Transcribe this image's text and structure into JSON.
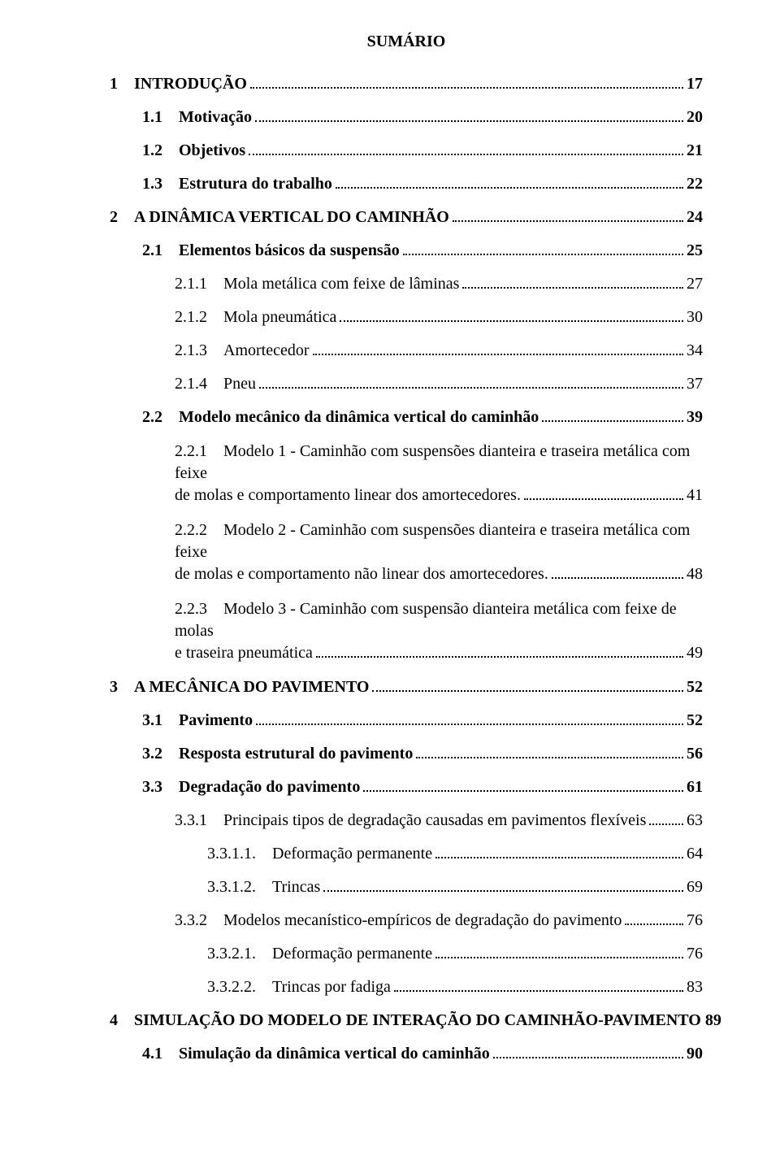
{
  "title": "SUMÁRIO",
  "sp": "    ",
  "entries": [
    {
      "id": "e0",
      "level": 0,
      "bold": true,
      "num": "1",
      "label": "INTRODUÇÃO",
      "page": "17"
    },
    {
      "id": "e1",
      "level": 1,
      "bold": true,
      "num": "1.1",
      "label": "Motivação",
      "page": "20"
    },
    {
      "id": "e2",
      "level": 1,
      "bold": true,
      "num": "1.2",
      "label": "Objetivos",
      "page": "21"
    },
    {
      "id": "e3",
      "level": 1,
      "bold": true,
      "num": "1.3",
      "label": "Estrutura do trabalho",
      "page": "22"
    },
    {
      "id": "e4",
      "level": 0,
      "bold": true,
      "num": "2",
      "label": "A DINÂMICA VERTICAL DO CAMINHÃO",
      "page": "24"
    },
    {
      "id": "e5",
      "level": 1,
      "bold": true,
      "num": "2.1",
      "label": "Elementos básicos da suspensão",
      "page": "25"
    },
    {
      "id": "e6",
      "level": 2,
      "bold": false,
      "num": "2.1.1",
      "label": "Mola metálica com feixe de lâminas",
      "page": "27"
    },
    {
      "id": "e7",
      "level": 2,
      "bold": false,
      "num": "2.1.2",
      "label": "Mola pneumática",
      "page": "30"
    },
    {
      "id": "e8",
      "level": 2,
      "bold": false,
      "num": "2.1.3",
      "label": "Amortecedor",
      "page": "34"
    },
    {
      "id": "e9",
      "level": 2,
      "bold": false,
      "num": "2.1.4",
      "label": "Pneu",
      "page": "37"
    },
    {
      "id": "e10",
      "level": 1,
      "bold": true,
      "num": "2.2",
      "label": "Modelo mecânico da dinâmica vertical do caminhão",
      "page": "39"
    },
    {
      "id": "e11",
      "level": 2,
      "bold": false,
      "wrap": true,
      "num": "2.2.1",
      "first": "Modelo 1 - Caminhão com suspensões dianteira e traseira metálica com feixe",
      "last": "de molas e comportamento linear dos amortecedores.",
      "page": "41"
    },
    {
      "id": "e12",
      "level": 2,
      "bold": false,
      "wrap": true,
      "num": "2.2.2",
      "first": "Modelo 2 - Caminhão com suspensões dianteira e traseira metálica com feixe",
      "last": "de molas e comportamento não linear dos amortecedores.",
      "page": "48"
    },
    {
      "id": "e13",
      "level": 2,
      "bold": false,
      "wrap": true,
      "num": "2.2.3",
      "first": "Modelo 3 - Caminhão com suspensão dianteira metálica com feixe de molas",
      "last": "e traseira pneumática",
      "page": "49"
    },
    {
      "id": "e14",
      "level": 0,
      "bold": true,
      "num": "3",
      "label": "A MECÂNICA DO PAVIMENTO",
      "page": "52"
    },
    {
      "id": "e15",
      "level": 1,
      "bold": true,
      "num": "3.1",
      "label": "Pavimento",
      "page": "52"
    },
    {
      "id": "e16",
      "level": 1,
      "bold": true,
      "num": "3.2",
      "label": "Resposta estrutural do pavimento",
      "page": "56"
    },
    {
      "id": "e17",
      "level": 1,
      "bold": true,
      "num": "3.3",
      "label": "Degradação do pavimento",
      "page": "61"
    },
    {
      "id": "e18",
      "level": 2,
      "bold": false,
      "num": "3.3.1",
      "label": "Principais tipos de degradação causadas em pavimentos flexíveis",
      "page": "63"
    },
    {
      "id": "e19",
      "level": 3,
      "bold": false,
      "num": "3.3.1.1.",
      "label": "Deformação permanente",
      "page": "64"
    },
    {
      "id": "e20",
      "level": 3,
      "bold": false,
      "num": "3.3.1.2.",
      "label": "Trincas",
      "page": "69"
    },
    {
      "id": "e21",
      "level": 2,
      "bold": false,
      "num": "3.3.2",
      "label": "Modelos mecanístico-empíricos de degradação do pavimento",
      "page": "76"
    },
    {
      "id": "e22",
      "level": 3,
      "bold": false,
      "num": "3.3.2.1.",
      "label": "Deformação permanente",
      "page": "76"
    },
    {
      "id": "e23",
      "level": 3,
      "bold": false,
      "num": "3.3.2.2.",
      "label": "Trincas por fadiga",
      "page": "83"
    },
    {
      "id": "e24",
      "level": 0,
      "bold": true,
      "num": "4",
      "label": "SIMULAÇÃO DO MODELO DE INTERAÇÃO DO CAMINHÃO-PAVIMENTO",
      "page": "89",
      "nodots": true
    },
    {
      "id": "e25",
      "level": 1,
      "bold": true,
      "num": "4.1",
      "label": "Simulação da dinâmica vertical do caminhão",
      "page": "90"
    }
  ]
}
